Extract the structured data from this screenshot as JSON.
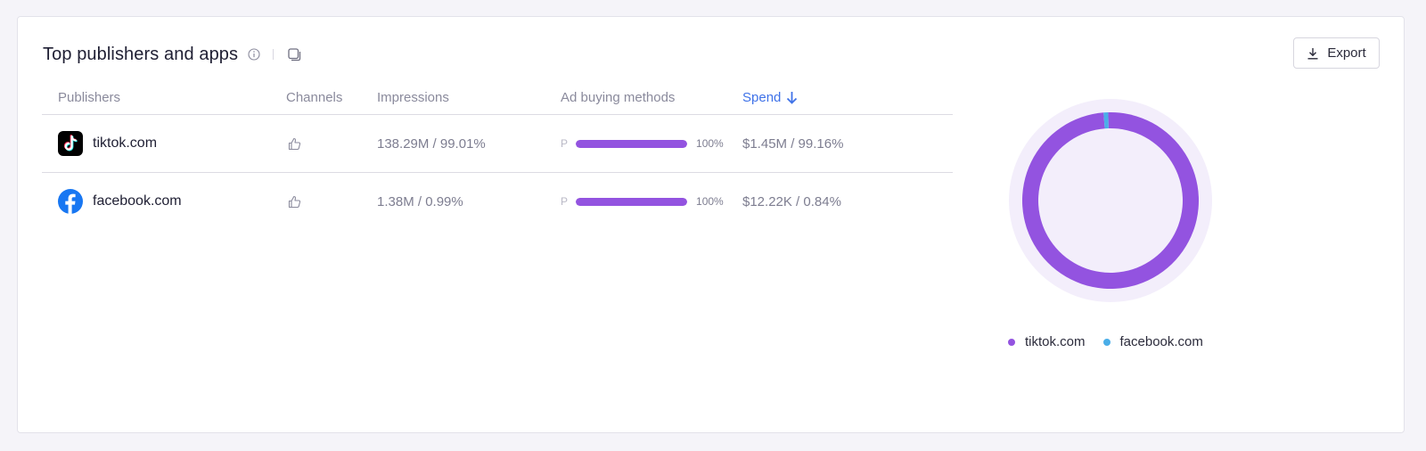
{
  "header": {
    "title": "Top publishers and apps",
    "info_icon": "info-icon",
    "copy_icon": "copy-icon",
    "export_label": "Export"
  },
  "table": {
    "columns": {
      "publishers": "Publishers",
      "channels": "Channels",
      "impressions": "Impressions",
      "ad_buying": "Ad buying methods",
      "spend": "Spend"
    },
    "sorted_by": "Spend",
    "sort_direction": "descending",
    "rows": [
      {
        "publisher": "tiktok.com",
        "logo": "tiktok-logo",
        "channel_icon": "thumbs-up-icon",
        "impressions": "138.29M / 99.01%",
        "method_letter": "P",
        "method_share": 1.0,
        "method_pct": "100%",
        "spend": "$1.45M / 99.16%"
      },
      {
        "publisher": "facebook.com",
        "logo": "facebook-logo",
        "channel_icon": "thumbs-up-icon",
        "impressions": "1.38M / 0.99%",
        "method_letter": "P",
        "method_share": 1.0,
        "method_pct": "100%",
        "spend": "$12.22K / 0.84%"
      }
    ]
  },
  "chart_data": {
    "type": "pie",
    "categories": [
      "tiktok.com",
      "facebook.com"
    ],
    "values": [
      99.16,
      0.84
    ],
    "colors": [
      "#9353e0",
      "#4aaee8"
    ],
    "donut": true,
    "legend_position": "bottom",
    "title": ""
  },
  "legend": [
    {
      "label": "tiktok.com",
      "color": "#9353e0"
    },
    {
      "label": "facebook.com",
      "color": "#4aaee8"
    }
  ],
  "colors": {
    "accent": "#3f72e8",
    "bar": "#9353e0",
    "donut_halo": "#f3eefb"
  }
}
